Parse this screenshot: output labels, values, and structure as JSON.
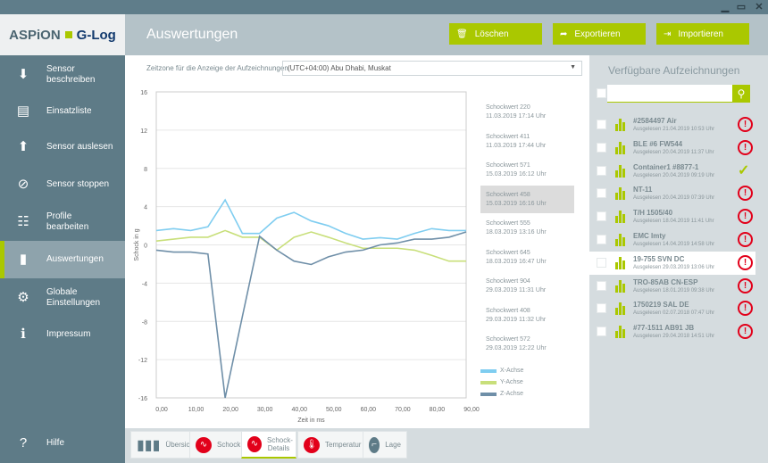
{
  "window": {
    "minimize": "▁",
    "maximize": "▭",
    "close": "✕"
  },
  "logo": {
    "part1": "ASPiON",
    "part2": "G-Log"
  },
  "header": {
    "title": "Auswertungen",
    "buttons": [
      {
        "label": "Löschen",
        "icon": "trash-icon"
      },
      {
        "label": "Exportieren",
        "icon": "export-icon"
      },
      {
        "label": "Importieren",
        "icon": "import-icon"
      }
    ]
  },
  "sidebar": {
    "items": [
      {
        "label": "Sensor beschreiben",
        "icon": "download-icon"
      },
      {
        "label": "Einsatzliste",
        "icon": "document-icon"
      },
      {
        "label": "Sensor auslesen",
        "icon": "upload-icon"
      },
      {
        "label": "Sensor stoppen",
        "icon": "stop-icon"
      },
      {
        "label": "Profile bearbeiten",
        "icon": "sliders-icon"
      },
      {
        "label": "Auswertungen",
        "icon": "bar-chart-icon",
        "active": true
      },
      {
        "label": "Globale Einstellungen",
        "icon": "gear-icon"
      },
      {
        "label": "Impressum",
        "icon": "info-icon"
      },
      {
        "label": "Hilfe",
        "icon": "help-icon"
      }
    ]
  },
  "timezone": {
    "label": "Zeitzone für die Anzeige der Aufzeichnungen",
    "value": "(UTC+04:00) Abu Dhabi, Muskat"
  },
  "shock_list": [
    {
      "name": "Schockwert 220",
      "date": "11.03.2019 17:14 Uhr"
    },
    {
      "name": "Schockwert 411",
      "date": "11.03.2019 17:44 Uhr"
    },
    {
      "name": "Schockwert 571",
      "date": "15.03.2019 16:12 Uhr"
    },
    {
      "name": "Schockwert 458",
      "date": "15.03.2019 16:16 Uhr",
      "selected": true
    },
    {
      "name": "Schockwert 555",
      "date": "18.03.2019 13:16 Uhr"
    },
    {
      "name": "Schockwert 645",
      "date": "18.03.2019 16:47 Uhr"
    },
    {
      "name": "Schockwert 904",
      "date": "29.03.2019 11:31 Uhr"
    },
    {
      "name": "Schockwert 408",
      "date": "29.03.2019 11:32 Uhr"
    },
    {
      "name": "Schockwert 572",
      "date": "29.03.2019 12:22 Uhr"
    }
  ],
  "chart_data": {
    "type": "line",
    "xlabel": "Zeit in ms",
    "ylabel": "Schock in g",
    "xlim": [
      0,
      90
    ],
    "ylim": [
      -16,
      16
    ],
    "xticks": [
      "0,00",
      "10,00",
      "20,00",
      "30,00",
      "40,00",
      "50,00",
      "60,00",
      "70,00",
      "80,00",
      "90,00"
    ],
    "yticks": [
      "16",
      "12",
      "8",
      "4",
      "0",
      "-4",
      "-8",
      "-12",
      "-16"
    ],
    "grid": true,
    "legend": "bottom-right",
    "x": [
      0,
      5,
      10,
      15,
      20,
      25,
      30,
      35,
      40,
      45,
      50,
      55,
      60,
      65,
      70,
      75,
      80,
      85,
      90
    ],
    "series": [
      {
        "name": "X-Achse",
        "color": "#7fcdf0",
        "values": [
          1.5,
          1.7,
          1.5,
          1.9,
          4.7,
          1.2,
          1.2,
          2.8,
          3.4,
          2.5,
          2.0,
          1.2,
          0.6,
          0.75,
          0.6,
          1.2,
          1.7,
          1.5,
          1.5
        ]
      },
      {
        "name": "Y-Achse",
        "color": "#c8df7a",
        "values": [
          0.4,
          0.6,
          0.8,
          0.8,
          1.5,
          0.8,
          0.8,
          -0.55,
          0.8,
          1.35,
          0.8,
          0.2,
          -0.35,
          -0.35,
          -0.35,
          -0.55,
          -1.1,
          -1.7,
          -1.7
        ]
      },
      {
        "name": "Z-Achse",
        "color": "#6f8fa8",
        "values": [
          -0.55,
          -0.75,
          -0.75,
          -0.95,
          -16,
          -7.5,
          0.9,
          -0.55,
          -1.7,
          -2.05,
          -1.25,
          -0.75,
          -0.55,
          0,
          0.2,
          0.6,
          0.6,
          0.8,
          1.35
        ]
      }
    ]
  },
  "tabs": [
    {
      "label": "Übersicht",
      "icon": "bar-chart-icon"
    },
    {
      "label": "Schock",
      "icon": "shock-icon"
    },
    {
      "label": "Schock-Details",
      "icon": "shock-icon",
      "active": true
    },
    {
      "label": "Temperatur",
      "icon": "thermometer-icon"
    },
    {
      "label": "Lage",
      "icon": "position-icon"
    }
  ],
  "records_panel": {
    "title": "Verfügbare Aufzeichnungen",
    "search_placeholder": "",
    "items": [
      {
        "name": "#2584497 Air",
        "date": "Ausgelesen 21.04.2019 10:53 Uhr",
        "status": "error"
      },
      {
        "name": "BLE #6 FW544",
        "date": "Ausgelesen 20.04.2019 11:37 Uhr",
        "status": "error"
      },
      {
        "name": "Container1 #8877-1",
        "date": "Ausgelesen 20.04.2019 09:19 Uhr",
        "status": "ok"
      },
      {
        "name": "NT-11",
        "date": "Ausgelesen 20.04.2019 07:39 Uhr",
        "status": "error"
      },
      {
        "name": "T/H 1505/40",
        "date": "Ausgelesen 18.04.2019 11:41 Uhr",
        "status": "error"
      },
      {
        "name": "EMC Imty",
        "date": "Ausgelesen 14.04.2019 14:58 Uhr",
        "status": "error"
      },
      {
        "name": "19-755 SVN DC",
        "date": "Ausgelesen 29.03.2019 13:06 Uhr",
        "status": "error",
        "selected": true
      },
      {
        "name": "TRO-85AB CN-ESP",
        "date": "Ausgelesen 18.01.2019 09:38 Uhr",
        "status": "error"
      },
      {
        "name": "1750219 SAL DE",
        "date": "Ausgelesen 02.07.2018 07:47 Uhr",
        "status": "error"
      },
      {
        "name": "#77-1511 AB91 JB",
        "date": "Ausgelesen 29.04.2018 14:51 Uhr",
        "status": "error"
      }
    ]
  },
  "colors": {
    "accent": "#aac800",
    "sidebar": "#5e7b87",
    "error": "#e2001a"
  }
}
